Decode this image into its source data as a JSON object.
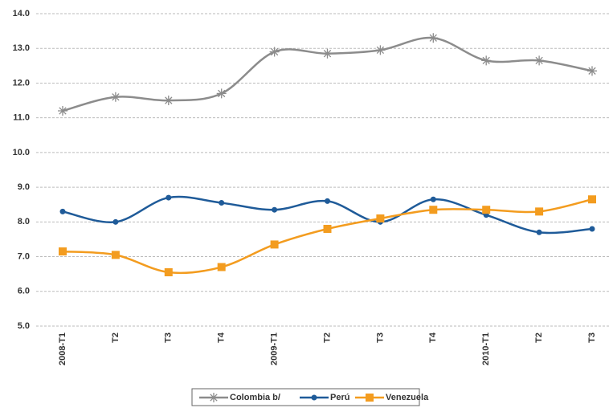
{
  "chart_data": {
    "type": "line",
    "categories": [
      "2008-T1",
      "T2",
      "T3",
      "T4",
      "2009-T1",
      "T2",
      "T3",
      "T4",
      "2010-T1",
      "T2",
      "T3"
    ],
    "series": [
      {
        "name": "Colombia b/",
        "color": "#8c8c8c",
        "marker": "asterisk",
        "values": [
          11.2,
          11.6,
          11.5,
          11.7,
          12.9,
          12.85,
          12.95,
          13.3,
          12.65,
          12.65,
          12.35
        ]
      },
      {
        "name": "Perú",
        "color": "#1f5b99",
        "marker": "circle",
        "values": [
          8.3,
          8.0,
          8.7,
          8.55,
          8.35,
          8.6,
          8.0,
          8.65,
          8.2,
          7.7,
          7.8
        ]
      },
      {
        "name": "Venezuela",
        "color": "#f39c1f",
        "marker": "square",
        "values": [
          7.15,
          7.05,
          6.55,
          6.7,
          7.35,
          7.8,
          8.1,
          8.35,
          8.35,
          8.3,
          8.65
        ]
      }
    ],
    "ylim": [
      5,
      14
    ],
    "yticks": [
      {
        "value": 5,
        "label": "5.0"
      },
      {
        "value": 6,
        "label": "6.0"
      },
      {
        "value": 7,
        "label": "7.0"
      },
      {
        "value": 8,
        "label": "8.0"
      },
      {
        "value": 9,
        "label": "9.0"
      },
      {
        "value": 10,
        "label": "10.0"
      },
      {
        "value": 11,
        "label": "11.0"
      },
      {
        "value": 12,
        "label": "12.0"
      },
      {
        "value": 13,
        "label": "13.0"
      },
      {
        "value": 14,
        "label": "14.0"
      }
    ],
    "grid": true,
    "legend": "bottom"
  }
}
